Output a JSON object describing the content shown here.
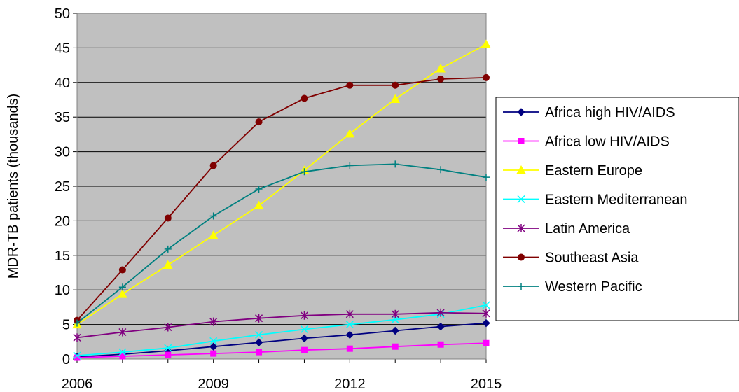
{
  "chart_data": {
    "type": "line",
    "title": "",
    "xlabel": "",
    "ylabel": "MDR-TB patients (thousands)",
    "xlim": [
      2006,
      2015
    ],
    "ylim": [
      0,
      50
    ],
    "yticks": [
      0,
      5,
      10,
      15,
      20,
      25,
      30,
      35,
      40,
      45,
      50
    ],
    "xticks": [
      2006,
      2009,
      2012,
      2015
    ],
    "grid": "horizontal",
    "plot_background": "#c0c0c0",
    "legend_position": "right",
    "x": [
      2006,
      2007,
      2008,
      2009,
      2010,
      2011,
      2012,
      2013,
      2014,
      2015
    ],
    "series": [
      {
        "name": "Africa high HIV/AIDS",
        "color": "#000080",
        "marker": "diamond",
        "values": [
          0.3,
          0.7,
          1.2,
          1.8,
          2.4,
          3.0,
          3.5,
          4.1,
          4.7,
          5.2
        ]
      },
      {
        "name": "Africa low HIV/AIDS",
        "color": "#ff00ff",
        "marker": "square",
        "values": [
          0.2,
          0.4,
          0.6,
          0.8,
          1.0,
          1.3,
          1.5,
          1.8,
          2.1,
          2.3
        ]
      },
      {
        "name": "Eastern Europe",
        "color": "#ffff00",
        "marker": "triangle",
        "values": [
          5.0,
          9.4,
          13.6,
          17.9,
          22.2,
          27.3,
          32.6,
          37.6,
          42.0,
          45.5
        ]
      },
      {
        "name": "Eastern Mediterranean",
        "color": "#00ffff",
        "marker": "x",
        "values": [
          0.5,
          1.0,
          1.6,
          2.6,
          3.5,
          4.3,
          5.0,
          5.7,
          6.5,
          7.8
        ]
      },
      {
        "name": "Latin America",
        "color": "#800080",
        "marker": "asterisk",
        "values": [
          3.1,
          3.9,
          4.6,
          5.4,
          5.9,
          6.3,
          6.5,
          6.5,
          6.7,
          6.6
        ]
      },
      {
        "name": "Southeast Asia",
        "color": "#800000",
        "marker": "circle",
        "values": [
          5.6,
          12.9,
          20.4,
          28.0,
          34.3,
          37.7,
          39.6,
          39.6,
          40.5,
          40.7
        ]
      },
      {
        "name": "Western Pacific",
        "color": "#008080",
        "marker": "plus",
        "values": [
          5.2,
          10.4,
          15.9,
          20.7,
          24.6,
          27.1,
          28.0,
          28.2,
          27.4,
          26.3
        ]
      }
    ]
  }
}
